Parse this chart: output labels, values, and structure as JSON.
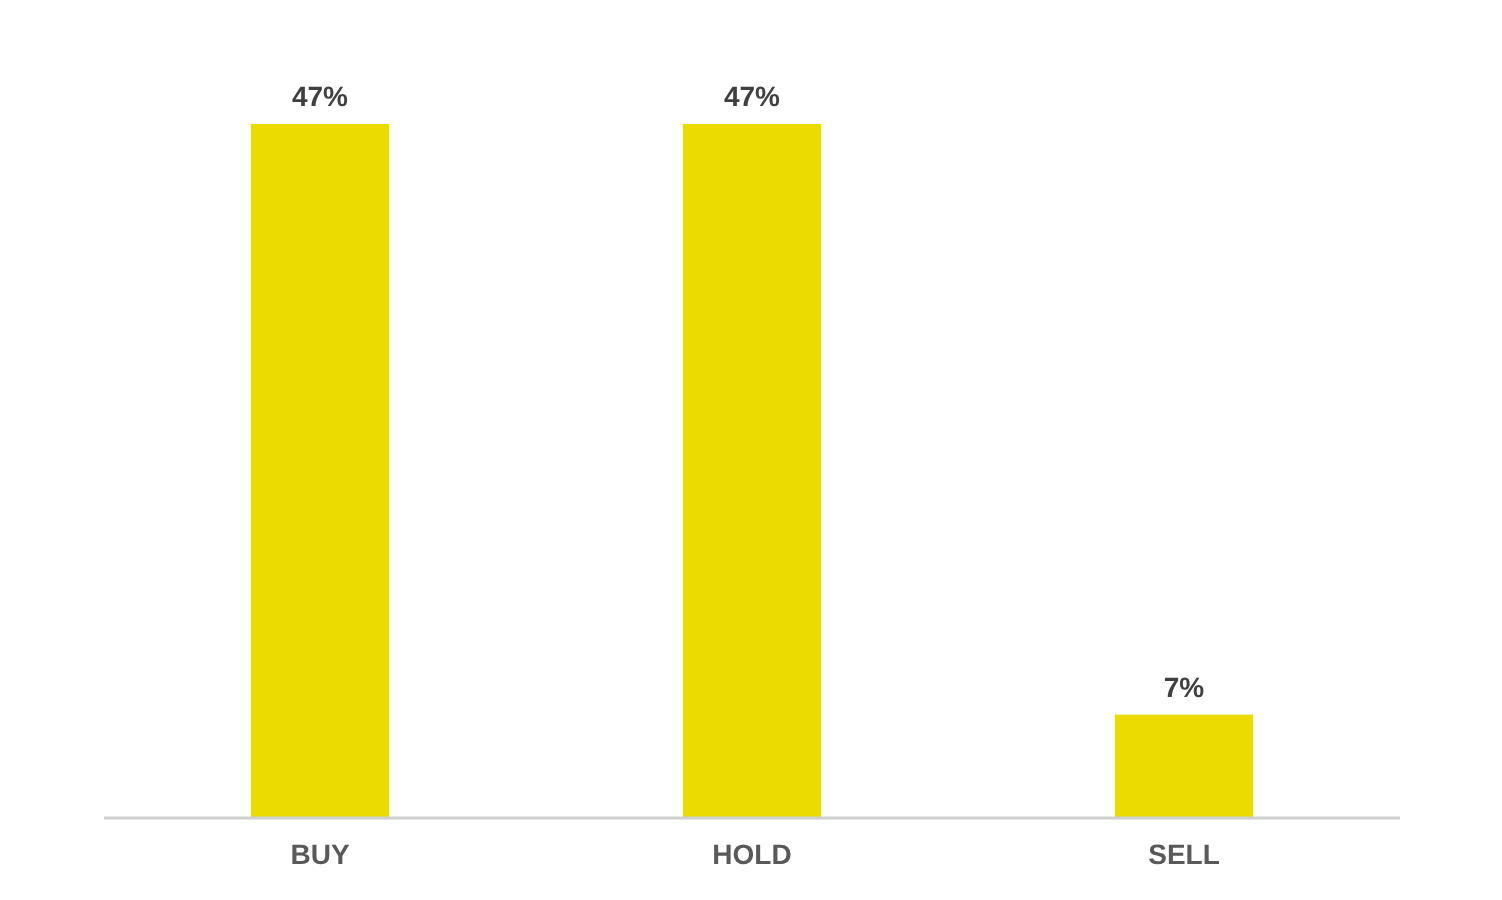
{
  "chart_data": {
    "type": "bar",
    "categories": [
      "BUY",
      "HOLD",
      "SELL"
    ],
    "values": [
      47,
      47,
      7
    ],
    "color": "#ecdb00",
    "value_labels": [
      "47%",
      "47%",
      "7%"
    ]
  }
}
